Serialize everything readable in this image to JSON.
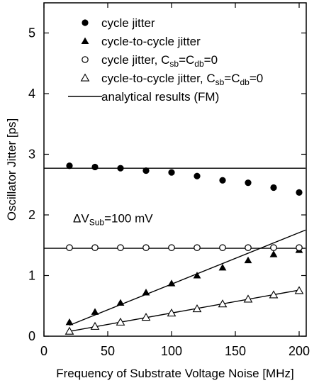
{
  "chart_data": {
    "type": "scatter",
    "xlabel": "Frequency of Substrate Voltage Noise [MHz]",
    "ylabel": "Oscillator Jitter [ps]",
    "xlim": [
      0,
      205
    ],
    "ylim": [
      0,
      5.5
    ],
    "x_ticks": [
      "0",
      "50",
      "100",
      "150",
      "200"
    ],
    "y_ticks": [
      "0",
      "1",
      "2",
      "3",
      "4",
      "5"
    ],
    "grid": false,
    "legend_position": "top-right",
    "annotation": {
      "prefix": "ΔV",
      "sub": "Sub",
      "suffix": "=100 mV",
      "x": 20,
      "y": 1.95
    },
    "legend": [
      {
        "marker": "filled-circle",
        "label": "cycle jitter",
        "sub_parts": []
      },
      {
        "marker": "filled-triangle",
        "label": "cycle-to-cycle jitter",
        "sub_parts": []
      },
      {
        "marker": "open-circle",
        "label": "cycle jitter, ",
        "sub_parts": [
          {
            "t": "C"
          },
          {
            "s": "sb"
          },
          {
            "t": "=C"
          },
          {
            "s": "db"
          },
          {
            "t": "=0"
          }
        ]
      },
      {
        "marker": "open-triangle",
        "label": "cycle-to-cycle jitter, ",
        "sub_parts": [
          {
            "t": "C"
          },
          {
            "s": "sb"
          },
          {
            "t": "=C"
          },
          {
            "s": "db"
          },
          {
            "t": "=0"
          }
        ]
      },
      {
        "marker": "line",
        "label": "analytical results (FM)",
        "sub_parts": []
      }
    ],
    "series": [
      {
        "name": "cycle jitter",
        "marker": "filled-circle",
        "x": [
          20,
          40,
          60,
          80,
          100,
          120,
          140,
          160,
          180,
          200
        ],
        "y": [
          2.81,
          2.79,
          2.77,
          2.73,
          2.7,
          2.64,
          2.57,
          2.53,
          2.45,
          2.37
        ]
      },
      {
        "name": "cycle-to-cycle jitter",
        "marker": "filled-triangle",
        "x": [
          20,
          40,
          60,
          80,
          100,
          120,
          140,
          160,
          180,
          200
        ],
        "y": [
          0.23,
          0.4,
          0.55,
          0.72,
          0.87,
          1.0,
          1.13,
          1.25,
          1.35,
          1.42
        ]
      },
      {
        "name": "cycle jitter, Csb=Cdb=0",
        "marker": "open-circle",
        "x": [
          20,
          40,
          60,
          80,
          100,
          120,
          140,
          160,
          180,
          200
        ],
        "y": [
          1.46,
          1.46,
          1.46,
          1.46,
          1.46,
          1.46,
          1.46,
          1.46,
          1.46,
          1.46
        ]
      },
      {
        "name": "cycle-to-cycle jitter, Csb=Cdb=0",
        "marker": "open-triangle",
        "x": [
          20,
          40,
          60,
          80,
          100,
          120,
          140,
          160,
          180,
          200
        ],
        "y": [
          0.08,
          0.16,
          0.23,
          0.31,
          0.38,
          0.45,
          0.53,
          0.61,
          0.68,
          0.75
        ]
      }
    ],
    "analytical_lines": [
      {
        "name": "analytical cycle jitter",
        "x": [
          0,
          205
        ],
        "y": [
          2.77,
          2.77
        ]
      },
      {
        "name": "analytical cycle jitter Csb=Cdb=0",
        "x": [
          0,
          205
        ],
        "y": [
          1.45,
          1.45
        ]
      },
      {
        "name": "analytical cycle-to-cycle jitter",
        "x": [
          20,
          205
        ],
        "y": [
          0.18,
          1.75
        ]
      },
      {
        "name": "analytical cycle-to-cycle jitter Csb=Cdb=0",
        "x": [
          20,
          200
        ],
        "y": [
          0.08,
          0.76
        ]
      }
    ]
  }
}
